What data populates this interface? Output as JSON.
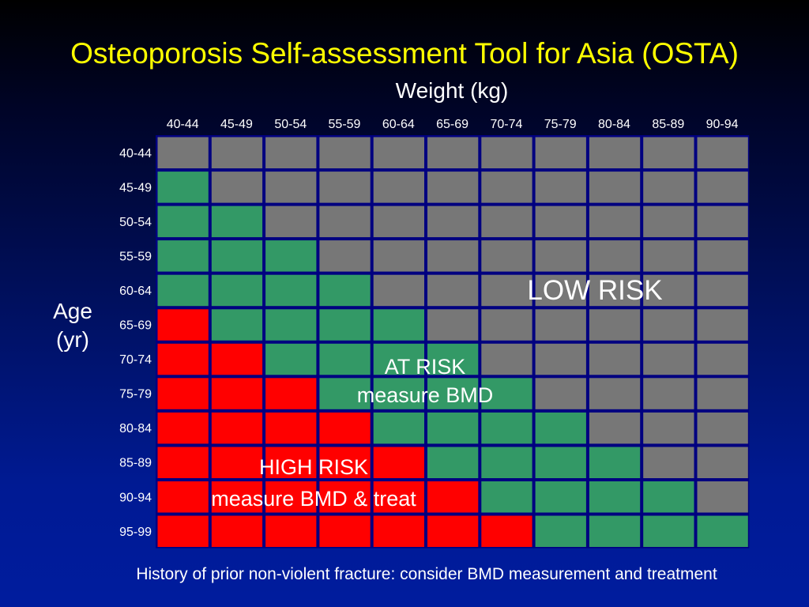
{
  "title": "Osteoporosis Self-assessment Tool for Asia (OSTA)",
  "footnote": "History of prior non-violent fracture: consider BMD measurement and treatment",
  "chart_data": {
    "type": "heatmap",
    "title": "Osteoporosis Self-assessment Tool for Asia (OSTA)",
    "xlabel": "Weight (kg)",
    "ylabel": [
      "Age",
      "(yr)"
    ],
    "x_categories": [
      "40-44",
      "45-49",
      "50-54",
      "55-59",
      "60-64",
      "65-69",
      "70-74",
      "75-79",
      "80-84",
      "85-89",
      "90-94"
    ],
    "y_categories": [
      "40-44",
      "45-49",
      "50-54",
      "55-59",
      "60-64",
      "65-69",
      "70-74",
      "75-79",
      "80-84",
      "85-89",
      "90-94",
      "95-99"
    ],
    "categories_legend": {
      "low": "LOW RISK",
      "at": "AT RISK\nmeasure BMD",
      "high": "HIGH RISK\nmeasure BMD & treat"
    },
    "colors": {
      "low": "#777777",
      "at": "#339966",
      "high": "#ff0000",
      "grid": "#000080"
    },
    "grid": [
      [
        "low",
        "low",
        "low",
        "low",
        "low",
        "low",
        "low",
        "low",
        "low",
        "low",
        "low"
      ],
      [
        "at",
        "low",
        "low",
        "low",
        "low",
        "low",
        "low",
        "low",
        "low",
        "low",
        "low"
      ],
      [
        "at",
        "at",
        "low",
        "low",
        "low",
        "low",
        "low",
        "low",
        "low",
        "low",
        "low"
      ],
      [
        "at",
        "at",
        "at",
        "low",
        "low",
        "low",
        "low",
        "low",
        "low",
        "low",
        "low"
      ],
      [
        "at",
        "at",
        "at",
        "at",
        "low",
        "low",
        "low",
        "low",
        "low",
        "low",
        "low"
      ],
      [
        "high",
        "at",
        "at",
        "at",
        "at",
        "low",
        "low",
        "low",
        "low",
        "low",
        "low"
      ],
      [
        "high",
        "high",
        "at",
        "at",
        "at",
        "at",
        "low",
        "low",
        "low",
        "low",
        "low"
      ],
      [
        "high",
        "high",
        "high",
        "at",
        "at",
        "at",
        "at",
        "low",
        "low",
        "low",
        "low"
      ],
      [
        "high",
        "high",
        "high",
        "high",
        "at",
        "at",
        "at",
        "at",
        "low",
        "low",
        "low"
      ],
      [
        "high",
        "high",
        "high",
        "high",
        "high",
        "at",
        "at",
        "at",
        "at",
        "low",
        "low"
      ],
      [
        "high",
        "high",
        "high",
        "high",
        "high",
        "high",
        "at",
        "at",
        "at",
        "at",
        "low"
      ],
      [
        "high",
        "high",
        "high",
        "high",
        "high",
        "high",
        "high",
        "at",
        "at",
        "at",
        "at"
      ]
    ]
  }
}
